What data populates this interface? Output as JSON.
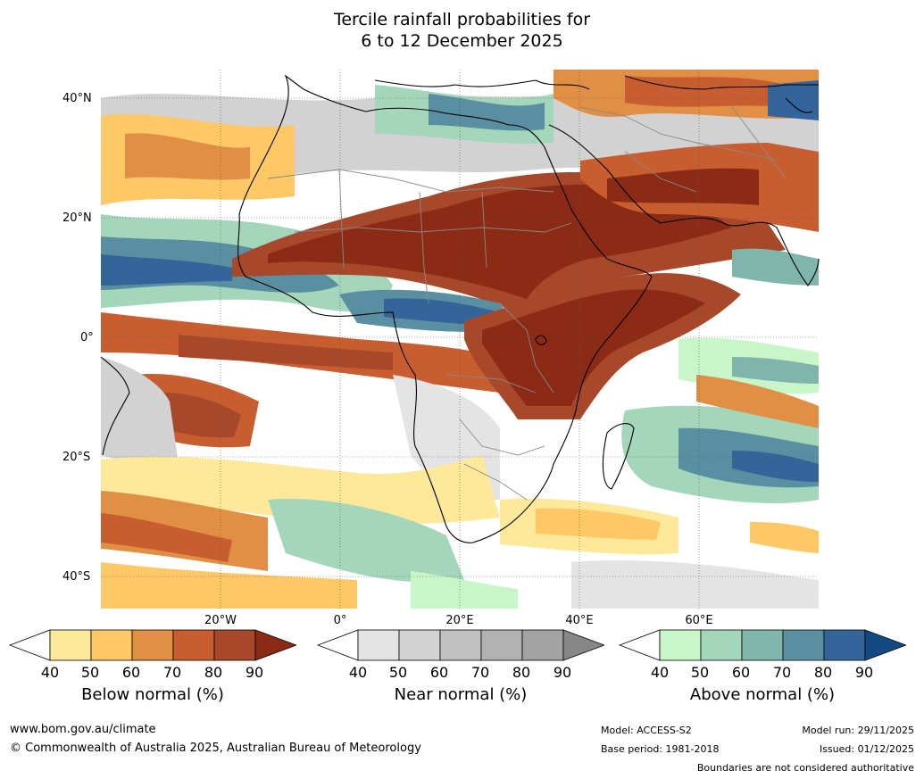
{
  "title": {
    "line1": "Tercile rainfall probabilities for",
    "line2": "6 to 12 December 2025"
  },
  "map": {
    "lat_labels": [
      "40°N",
      "20°N",
      "0°",
      "20°S",
      "40°S"
    ],
    "lon_labels": [
      "20°W",
      "0°",
      "20°E",
      "40°E",
      "60°E"
    ]
  },
  "legends": [
    {
      "name": "Below normal (%)",
      "ticks": [
        "40",
        "50",
        "60",
        "70",
        "80",
        "90"
      ],
      "colors": [
        "#ffffff",
        "#fee99a",
        "#fdc865",
        "#e08f45",
        "#c85e30",
        "#a8482a",
        "#8c2b15"
      ]
    },
    {
      "name": "Near normal (%)",
      "ticks": [
        "40",
        "50",
        "60",
        "70",
        "80",
        "90"
      ],
      "colors": [
        "#ffffff",
        "#e4e4e4",
        "#d2d2d2",
        "#c1c1c1",
        "#b2b2b2",
        "#a3a3a3",
        "#878787"
      ]
    },
    {
      "name": "Above normal (%)",
      "ticks": [
        "40",
        "50",
        "60",
        "70",
        "80",
        "90"
      ],
      "colors": [
        "#ffffff",
        "#c8f6c8",
        "#a3d6bb",
        "#7fb5ab",
        "#5a8fa2",
        "#33649a",
        "#144a84"
      ]
    }
  ],
  "footer": {
    "url": "www.bom.gov.au/climate",
    "copyright": "© Commonwealth of Australia 2025, Australian Bureau of Meteorology",
    "model": "Model: ACCESS-S2",
    "base_period": "Base period: 1981-2018",
    "model_run": "Model run: 29/11/2025",
    "issued": "Issued: 01/12/2025",
    "disclaimer": "Boundaries are not considered authoritative"
  }
}
